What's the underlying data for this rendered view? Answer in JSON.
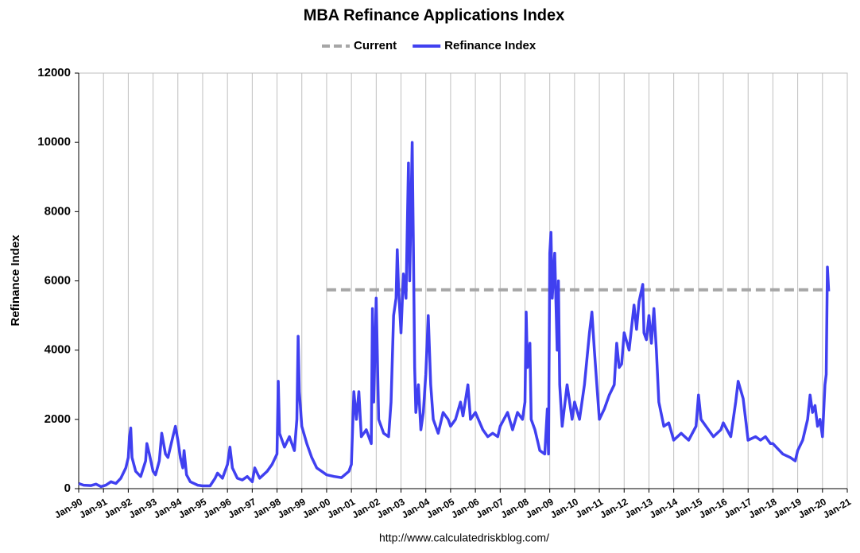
{
  "chart_data": {
    "type": "line",
    "title": "MBA Refinance Applications Index",
    "y_label": "Refinance Index",
    "source": "http://www.calculatedriskblog.com/",
    "grid": "x",
    "legend": "top",
    "xlim": [
      1990,
      2021
    ],
    "ylim": [
      0,
      12000
    ],
    "yticks": [
      0,
      2000,
      4000,
      6000,
      8000,
      10000,
      12000
    ],
    "xticks": [
      {
        "value": 1990,
        "label": "Jan-90"
      },
      {
        "value": 1991,
        "label": "Jan-91"
      },
      {
        "value": 1992,
        "label": "Jan-92"
      },
      {
        "value": 1993,
        "label": "Jan-93"
      },
      {
        "value": 1994,
        "label": "Jan-94"
      },
      {
        "value": 1995,
        "label": "Jan-95"
      },
      {
        "value": 1996,
        "label": "Jan-96"
      },
      {
        "value": 1997,
        "label": "Jan-97"
      },
      {
        "value": 1998,
        "label": "Jan-98"
      },
      {
        "value": 1999,
        "label": "Jan-99"
      },
      {
        "value": 2000,
        "label": "Jan-00"
      },
      {
        "value": 2001,
        "label": "Jan-01"
      },
      {
        "value": 2002,
        "label": "Jan-02"
      },
      {
        "value": 2003,
        "label": "Jan-03"
      },
      {
        "value": 2004,
        "label": "Jan-04"
      },
      {
        "value": 2005,
        "label": "Jan-05"
      },
      {
        "value": 2006,
        "label": "Jan-06"
      },
      {
        "value": 2007,
        "label": "Jan-07"
      },
      {
        "value": 2008,
        "label": "Jan-08"
      },
      {
        "value": 2009,
        "label": "Jan-09"
      },
      {
        "value": 2010,
        "label": "Jan-10"
      },
      {
        "value": 2011,
        "label": "Jan-11"
      },
      {
        "value": 2012,
        "label": "Jan-12"
      },
      {
        "value": 2013,
        "label": "Jan-13"
      },
      {
        "value": 2014,
        "label": "Jan-14"
      },
      {
        "value": 2015,
        "label": "Jan-15"
      },
      {
        "value": 2016,
        "label": "Jan-16"
      },
      {
        "value": 2017,
        "label": "Jan-17"
      },
      {
        "value": 2018,
        "label": "Jan-18"
      },
      {
        "value": 2019,
        "label": "Jan-19"
      },
      {
        "value": 2020,
        "label": "Jan-20"
      },
      {
        "value": 2021,
        "label": "Jan-21"
      }
    ],
    "series": [
      {
        "name": "Current",
        "color": "#a6a6a6",
        "dashed": true,
        "x": [
          2000,
          2020.25
        ],
        "values": [
          5740,
          5740
        ]
      },
      {
        "name": "Refinance Index",
        "color": "#4040f0",
        "dashed": false,
        "x": [
          1990.0,
          1990.2,
          1990.5,
          1990.7,
          1990.9,
          1991.1,
          1991.3,
          1991.5,
          1991.7,
          1991.9,
          1992.0,
          1992.05,
          1992.1,
          1992.15,
          1992.3,
          1992.5,
          1992.7,
          1992.75,
          1992.85,
          1993.0,
          1993.1,
          1993.25,
          1993.35,
          1993.5,
          1993.6,
          1993.8,
          1993.9,
          1994.0,
          1994.1,
          1994.2,
          1994.25,
          1994.35,
          1994.5,
          1994.8,
          1995.0,
          1995.3,
          1995.5,
          1995.6,
          1995.8,
          1996.0,
          1996.1,
          1996.2,
          1996.4,
          1996.6,
          1996.8,
          1997.0,
          1997.1,
          1997.3,
          1997.6,
          1997.8,
          1998.0,
          1998.05,
          1998.1,
          1998.3,
          1998.5,
          1998.7,
          1998.8,
          1998.85,
          1998.9,
          1999.0,
          1999.2,
          1999.4,
          1999.6,
          1999.8,
          2000.0,
          2000.3,
          2000.6,
          2000.9,
          2001.0,
          2001.1,
          2001.2,
          2001.3,
          2001.4,
          2001.6,
          2001.8,
          2001.85,
          2001.9,
          2002.0,
          2002.1,
          2002.3,
          2002.5,
          2002.6,
          2002.7,
          2002.8,
          2002.85,
          2002.9,
          2003.0,
          2003.1,
          2003.2,
          2003.3,
          2003.35,
          2003.45,
          2003.5,
          2003.55,
          2003.6,
          2003.7,
          2003.8,
          2003.9,
          2004.0,
          2004.1,
          2004.2,
          2004.3,
          2004.5,
          2004.7,
          2004.9,
          2005.0,
          2005.2,
          2005.4,
          2005.5,
          2005.7,
          2005.8,
          2006.0,
          2006.3,
          2006.5,
          2006.7,
          2006.9,
          2007.0,
          2007.3,
          2007.5,
          2007.7,
          2007.9,
          2008.0,
          2008.05,
          2008.1,
          2008.2,
          2008.25,
          2008.4,
          2008.6,
          2008.8,
          2008.9,
          2008.95,
          2009.0,
          2009.05,
          2009.1,
          2009.2,
          2009.3,
          2009.35,
          2009.4,
          2009.5,
          2009.7,
          2009.9,
          2010.0,
          2010.2,
          2010.4,
          2010.6,
          2010.7,
          2010.8,
          2010.9,
          2011.0,
          2011.2,
          2011.4,
          2011.6,
          2011.7,
          2011.8,
          2011.9,
          2012.0,
          2012.2,
          2012.4,
          2012.5,
          2012.6,
          2012.75,
          2012.8,
          2012.9,
          2013.0,
          2013.1,
          2013.2,
          2013.3,
          2013.4,
          2013.6,
          2013.8,
          2014.0,
          2014.3,
          2014.6,
          2014.9,
          2015.0,
          2015.1,
          2015.3,
          2015.6,
          2015.9,
          2016.0,
          2016.3,
          2016.5,
          2016.6,
          2016.8,
          2016.9,
          2017.0,
          2017.3,
          2017.5,
          2017.7,
          2017.9,
          2018.0,
          2018.4,
          2018.7,
          2018.9,
          2019.0,
          2019.2,
          2019.4,
          2019.5,
          2019.6,
          2019.7,
          2019.8,
          2019.9,
          2020.0,
          2020.1,
          2020.15,
          2020.2,
          2020.25
        ],
        "values": [
          150,
          100,
          90,
          130,
          60,
          100,
          200,
          150,
          300,
          600,
          900,
          1500,
          1750,
          900,
          500,
          350,
          800,
          1300,
          1000,
          500,
          400,
          800,
          1600,
          1000,
          900,
          1500,
          1800,
          1400,
          900,
          600,
          1100,
          400,
          200,
          100,
          80,
          80,
          300,
          450,
          300,
          700,
          1200,
          600,
          300,
          250,
          350,
          200,
          600,
          300,
          500,
          700,
          1000,
          3100,
          1600,
          1200,
          1500,
          1100,
          2000,
          4400,
          2800,
          1800,
          1300,
          900,
          600,
          500,
          400,
          350,
          320,
          500,
          700,
          2800,
          2000,
          2800,
          1500,
          1700,
          1300,
          5200,
          2500,
          5500,
          2000,
          1600,
          1500,
          2500,
          5000,
          5500,
          6900,
          5800,
          4500,
          6200,
          5500,
          9400,
          6000,
          10000,
          7000,
          3500,
          2200,
          3000,
          1700,
          2200,
          3300,
          5000,
          3000,
          2000,
          1600,
          2200,
          2000,
          1800,
          2000,
          2500,
          2100,
          3000,
          2000,
          2200,
          1700,
          1500,
          1600,
          1500,
          1800,
          2200,
          1700,
          2200,
          2000,
          2500,
          5100,
          3500,
          4200,
          2000,
          1700,
          1100,
          1000,
          2300,
          1000,
          6800,
          7400,
          5500,
          6800,
          4000,
          6000,
          3000,
          1800,
          3000,
          2000,
          2500,
          2000,
          3000,
          4500,
          5100,
          4000,
          3000,
          2000,
          2300,
          2700,
          3000,
          4200,
          3500,
          3600,
          4500,
          4000,
          5300,
          4600,
          5400,
          5900,
          4500,
          4300,
          5000,
          4200,
          5200,
          4000,
          2500,
          1800,
          1900,
          1400,
          1600,
          1400,
          1800,
          2700,
          2000,
          1800,
          1500,
          1700,
          1900,
          1500,
          2500,
          3100,
          2600,
          2000,
          1400,
          1500,
          1400,
          1500,
          1300,
          1300,
          1000,
          900,
          800,
          1100,
          1400,
          2000,
          2700,
          2200,
          2400,
          1800,
          2000,
          1500,
          3000,
          3300,
          6400,
          5700
        ]
      }
    ]
  }
}
